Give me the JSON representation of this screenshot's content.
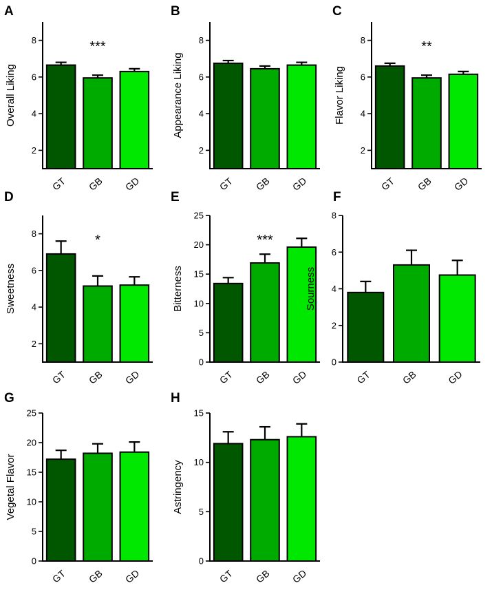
{
  "figure": {
    "categories": [
      "GT",
      "GB",
      "GD"
    ]
  },
  "colors": {
    "GT": "#005700",
    "GB": "#00ab00",
    "GD": "#00e800",
    "axis": "#000000"
  },
  "chart_data": [
    {
      "panel": "A",
      "type": "bar",
      "ylabel": "Overall Liking",
      "categories": [
        "GT",
        "GB",
        "GD"
      ],
      "values": [
        6.65,
        5.95,
        6.3
      ],
      "errors": [
        0.15,
        0.15,
        0.15
      ],
      "ylim": [
        1,
        9
      ],
      "yticks": [
        2,
        4,
        6,
        8
      ],
      "significance": "***"
    },
    {
      "panel": "B",
      "type": "bar",
      "ylabel": "Appearance Liking",
      "categories": [
        "GT",
        "GB",
        "GD"
      ],
      "values": [
        6.75,
        6.45,
        6.65
      ],
      "errors": [
        0.15,
        0.15,
        0.15
      ],
      "ylim": [
        1,
        9
      ],
      "yticks": [
        2,
        4,
        6,
        8
      ],
      "significance": ""
    },
    {
      "panel": "C",
      "type": "bar",
      "ylabel": "Flavor Liking",
      "categories": [
        "GT",
        "GB",
        "GD"
      ],
      "values": [
        6.6,
        5.95,
        6.15
      ],
      "errors": [
        0.15,
        0.15,
        0.15
      ],
      "ylim": [
        1,
        9
      ],
      "yticks": [
        2,
        4,
        6,
        8
      ],
      "significance": "**"
    },
    {
      "panel": "D",
      "type": "bar",
      "ylabel": "Sweetness",
      "categories": [
        "GT",
        "GB",
        "GD"
      ],
      "values": [
        6.9,
        5.15,
        5.2
      ],
      "errors": [
        0.7,
        0.55,
        0.45
      ],
      "ylim": [
        1,
        9
      ],
      "yticks": [
        2,
        4,
        6,
        8
      ],
      "significance": "*"
    },
    {
      "panel": "E",
      "type": "bar",
      "ylabel": "Bitterness",
      "categories": [
        "GT",
        "GB",
        "GD"
      ],
      "values": [
        13.4,
        16.9,
        19.6
      ],
      "errors": [
        1.0,
        1.5,
        1.5
      ],
      "ylim": [
        0,
        25
      ],
      "yticks": [
        0,
        5,
        10,
        15,
        20,
        25
      ],
      "significance": "***"
    },
    {
      "panel": "F",
      "type": "bar",
      "ylabel": "Sourness",
      "categories": [
        "GT",
        "GB",
        "GD"
      ],
      "values": [
        3.8,
        5.3,
        4.75
      ],
      "errors": [
        0.6,
        0.8,
        0.8
      ],
      "ylim": [
        0,
        8
      ],
      "yticks": [
        0,
        2,
        4,
        6,
        8
      ],
      "significance": ""
    },
    {
      "panel": "G",
      "type": "bar",
      "ylabel": "Vegetal Flavor",
      "categories": [
        "GT",
        "GB",
        "GD"
      ],
      "values": [
        17.2,
        18.2,
        18.4
      ],
      "errors": [
        1.5,
        1.6,
        1.7
      ],
      "ylim": [
        0,
        25
      ],
      "yticks": [
        0,
        5,
        10,
        15,
        20,
        25
      ],
      "significance": ""
    },
    {
      "panel": "H",
      "type": "bar",
      "ylabel": "Astringency",
      "categories": [
        "GT",
        "GB",
        "GD"
      ],
      "values": [
        11.9,
        12.3,
        12.6
      ],
      "errors": [
        1.2,
        1.3,
        1.3
      ],
      "ylim": [
        0,
        15
      ],
      "yticks": [
        0,
        5,
        10,
        15
      ],
      "significance": ""
    }
  ]
}
